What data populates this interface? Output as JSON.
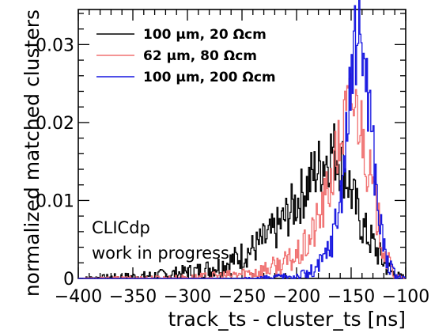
{
  "chart_data": {
    "type": "line",
    "xlabel": "track_ts - cluster_ts [ns]",
    "ylabel": "normalized matched clusters",
    "xlim": [
      -400,
      -100
    ],
    "ylim": [
      0,
      0.0345
    ],
    "x_ticks": [
      -400,
      -350,
      -300,
      -250,
      -200,
      -150,
      -100
    ],
    "x_tick_labels": [
      "−400",
      "−350",
      "−300",
      "−250",
      "−200",
      "−150",
      "−100"
    ],
    "y_ticks": [
      0,
      0.01,
      0.02,
      0.03
    ],
    "y_tick_labels": [
      "0",
      "0.01",
      "0.02",
      "0.03"
    ],
    "grid": false,
    "legend_position": "top-left",
    "annotation_lines": [
      "CLICdp",
      "work in progress"
    ],
    "series": [
      {
        "name": "100 μm, 20 Ωcm",
        "color": "#000000",
        "x": [
          -400,
          -380,
          -360,
          -340,
          -320,
          -300,
          -290,
          -280,
          -270,
          -260,
          -250,
          -240,
          -230,
          -220,
          -210,
          -200,
          -195,
          -190,
          -185,
          -180,
          -175,
          -170,
          -168,
          -165,
          -162,
          -160,
          -157,
          -155,
          -152,
          -150,
          -147,
          -145,
          -142,
          -140,
          -137,
          -135,
          -130,
          -125,
          -120,
          -115,
          -110,
          -105,
          -100
        ],
        "y": [
          0.0,
          0.0001,
          0.0002,
          0.0003,
          0.0005,
          0.0008,
          0.001,
          0.0013,
          0.0017,
          0.0022,
          0.003,
          0.0038,
          0.0048,
          0.006,
          0.0078,
          0.0098,
          0.0108,
          0.012,
          0.0133,
          0.0142,
          0.0152,
          0.016,
          0.0165,
          0.0162,
          0.0157,
          0.0152,
          0.0145,
          0.0135,
          0.0123,
          0.0112,
          0.0098,
          0.0088,
          0.0078,
          0.0068,
          0.006,
          0.0055,
          0.0045,
          0.0032,
          0.002,
          0.0011,
          0.0005,
          0.0002,
          0.0001
        ]
      },
      {
        "name": "62 μm, 80 Ωcm",
        "color": "#f07070",
        "x": [
          -400,
          -300,
          -260,
          -240,
          -220,
          -210,
          -200,
          -195,
          -190,
          -185,
          -180,
          -175,
          -170,
          -165,
          -160,
          -157,
          -155,
          -152,
          -150,
          -147,
          -145,
          -142,
          -140,
          -137,
          -135,
          -130,
          -125,
          -120,
          -115,
          -110,
          -105,
          -100
        ],
        "y": [
          0.0,
          0.0001,
          0.0004,
          0.0008,
          0.0015,
          0.002,
          0.0028,
          0.0035,
          0.0045,
          0.0058,
          0.0075,
          0.0095,
          0.0118,
          0.0145,
          0.0178,
          0.0195,
          0.0208,
          0.022,
          0.0226,
          0.0225,
          0.0218,
          0.0208,
          0.0192,
          0.0172,
          0.0148,
          0.011,
          0.0072,
          0.0038,
          0.0016,
          0.0005,
          0.0001,
          0.0
        ]
      },
      {
        "name": "100 μm, 200 Ωcm",
        "color": "#1515e0",
        "x": [
          -400,
          -250,
          -220,
          -200,
          -190,
          -185,
          -180,
          -175,
          -170,
          -165,
          -160,
          -157,
          -155,
          -152,
          -150,
          -147,
          -145,
          -143,
          -141,
          -139,
          -137,
          -135,
          -132,
          -130,
          -127,
          -125,
          -120,
          -115,
          -110,
          -105,
          -100
        ],
        "y": [
          0.0,
          0.0,
          0.0001,
          0.0003,
          0.0006,
          0.0009,
          0.0015,
          0.0025,
          0.004,
          0.0065,
          0.0105,
          0.014,
          0.0175,
          0.0215,
          0.0255,
          0.0288,
          0.0308,
          0.0315,
          0.0313,
          0.0298,
          0.0275,
          0.0248,
          0.021,
          0.017,
          0.0125,
          0.0088,
          0.0042,
          0.0015,
          0.0004,
          0.0001,
          0.0
        ]
      }
    ]
  }
}
